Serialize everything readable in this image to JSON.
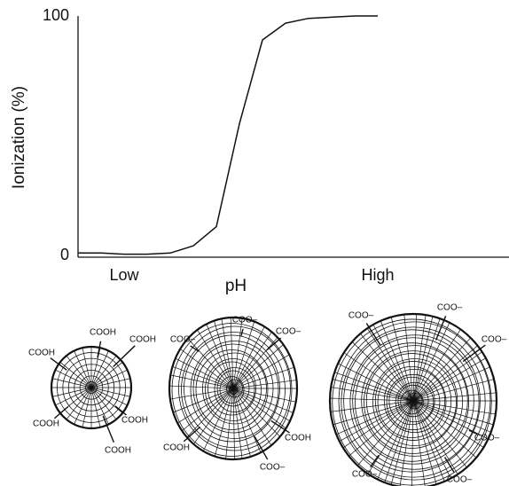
{
  "chart_data": {
    "type": "line",
    "y_label": "Ionization (%)",
    "x_label": "pH",
    "categories": [
      null,
      null,
      "Low",
      null,
      null,
      null,
      null,
      null,
      null,
      null,
      null,
      null,
      null,
      "High"
    ],
    "series": [
      {
        "name": null,
        "color": "#111111",
        "values": [
          1,
          1,
          0.5,
          0.5,
          1,
          4,
          12,
          55,
          90,
          97,
          99,
          99.5,
          100,
          100
        ]
      }
    ],
    "ylim": [
      0,
      100
    ],
    "yticks": [
      0,
      100
    ],
    "grid": false
  },
  "gels": [
    {
      "labels": [
        "COOH",
        "COOH",
        "COOH",
        "COOH",
        "COOH",
        "COOH"
      ]
    },
    {
      "labels": [
        "COO–",
        "COO–",
        "COO–",
        "COOH",
        "COOH",
        "COO–"
      ]
    },
    {
      "labels": [
        "COO–",
        "COO–",
        "COO–",
        "COO–",
        "COO–",
        "COO–"
      ]
    }
  ]
}
